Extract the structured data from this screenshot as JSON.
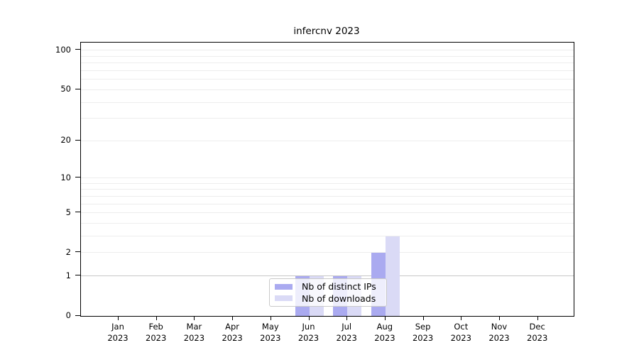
{
  "title": "infercnv 2023",
  "colors": {
    "distinct_ips": "#aaaaf0",
    "downloads": "#dadaf6",
    "grid_minor": "#ededed",
    "grid_emphasis_value1": "#c6c6c6",
    "axis": "#000000",
    "legend_border": "#c9c9c9",
    "background": "#ffffff"
  },
  "legend": {
    "items": [
      {
        "label": "Nb of distinct IPs",
        "color_key": "distinct_ips"
      },
      {
        "label": "Nb of downloads",
        "color_key": "downloads"
      }
    ]
  },
  "chart_data": {
    "type": "bar",
    "title": "infercnv 2023",
    "categories": [
      {
        "month": "Jan",
        "year": "2023"
      },
      {
        "month": "Feb",
        "year": "2023"
      },
      {
        "month": "Mar",
        "year": "2023"
      },
      {
        "month": "Apr",
        "year": "2023"
      },
      {
        "month": "May",
        "year": "2023"
      },
      {
        "month": "Jun",
        "year": "2023"
      },
      {
        "month": "Jul",
        "year": "2023"
      },
      {
        "month": "Aug",
        "year": "2023"
      },
      {
        "month": "Sep",
        "year": "2023"
      },
      {
        "month": "Oct",
        "year": "2023"
      },
      {
        "month": "Nov",
        "year": "2023"
      },
      {
        "month": "Dec",
        "year": "2023"
      }
    ],
    "series": [
      {
        "name": "Nb of distinct IPs",
        "color_key": "distinct_ips",
        "values": [
          0,
          0,
          0,
          0,
          0,
          1,
          1,
          2,
          0,
          0,
          0,
          0
        ]
      },
      {
        "name": "Nb of downloads",
        "color_key": "downloads",
        "values": [
          0,
          0,
          0,
          0,
          0,
          1,
          1,
          3,
          0,
          0,
          0,
          0
        ]
      }
    ],
    "ylabel": "",
    "xlabel": "",
    "yscale": "log10(1+y)",
    "ylim": [
      0,
      100
    ],
    "yticks": [
      0,
      1,
      2,
      5,
      10,
      20,
      50,
      100
    ],
    "minor_gridlines": [
      3,
      4,
      6,
      7,
      8,
      9,
      30,
      40,
      60,
      70,
      80,
      90
    ],
    "grid": true,
    "legend_position": "bottom-center"
  }
}
